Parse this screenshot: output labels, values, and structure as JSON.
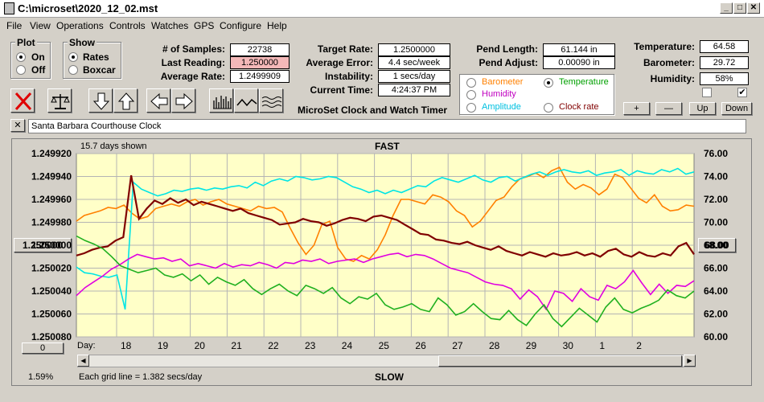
{
  "window": {
    "title": "C:\\microset\\2020_12_02.mst"
  },
  "menu": [
    "File",
    "View",
    "Operations",
    "Controls",
    "Watches",
    "GPS",
    "Configure",
    "Help"
  ],
  "plot_group": {
    "title": "Plot",
    "on": "On",
    "off": "Off",
    "selected": "On"
  },
  "show_group": {
    "title": "Show",
    "rates": "Rates",
    "boxcar": "Boxcar",
    "selected": "Rates"
  },
  "stats": {
    "samples_label": "# of Samples:",
    "samples": "22738",
    "last_label": "Last Reading:",
    "last": "1.250000",
    "avg_label": "Average Rate:",
    "avg": "1.2499909",
    "target_label": "Target Rate:",
    "target": "1.2500000",
    "error_label": "Average Error:",
    "error": "4.4 sec/week",
    "instab_label": "Instability:",
    "instab": "1 secs/day",
    "time_label": "Current Time:",
    "time": "4:24:37 PM",
    "heading": "MicroSet Clock and Watch Timer",
    "pend_len_label": "Pend Length:",
    "pend_len": "61.144 in",
    "pend_adj_label": "Pend Adjust:",
    "pend_adj": "0.00090 in",
    "temp_label": "Temperature:",
    "temp": "64.58",
    "baro_label": "Barometer:",
    "baro": "29.72",
    "hum_label": "Humidity:",
    "hum": "58%"
  },
  "overlay": {
    "options": [
      {
        "label": "Barometer",
        "color": "#ff8000",
        "selected": false
      },
      {
        "label": "Temperature",
        "color": "#00a000",
        "selected": true
      },
      {
        "label": "Humidity",
        "color": "#c000c0",
        "selected": false
      },
      {
        "label": "Clock rate",
        "color": "#800000",
        "selected": false
      },
      {
        "label": "Amplitude",
        "color": "#00c0e0",
        "selected": false
      }
    ]
  },
  "right_buttons": {
    "plus": "+",
    "minus": "—",
    "up": "Up",
    "down": "Down"
  },
  "right_checks": {
    "left": "",
    "right": "✔"
  },
  "toolbar_icons": [
    "stop-icon",
    "balance-icon",
    "down-arrow-icon",
    "up-arrow-icon",
    "left-arrow-icon",
    "right-arrow-icon",
    "bars-icon",
    "wave-icon",
    "multiwave-icon"
  ],
  "clock_name": "Santa Barbara Courthouse Clock",
  "close_x": "✕",
  "plot": {
    "days_shown": "15.7 days shown",
    "top": "FAST",
    "bottom": "SLOW",
    "grid_note": "Each grid line = 1.382 secs/day",
    "percent": "1.59%",
    "left_value_btn": "1.250000",
    "right_value_btn": "68.00",
    "zero_btn": "0",
    "day_label": "Day:"
  },
  "chart_data": {
    "type": "line",
    "x_ticks": [
      "18",
      "19",
      "20",
      "21",
      "22",
      "23",
      "24",
      "25",
      "26",
      "27",
      "28",
      "29",
      "30",
      "1",
      "2"
    ],
    "y_left_ticks": [
      "1.249920",
      "1.249940",
      "1.249960",
      "1.249980",
      "1.250000",
      "1.250020",
      "1.250040",
      "1.250060",
      "1.250080"
    ],
    "y_left_range": [
      1.24992,
      1.25008
    ],
    "y_left_inverted": true,
    "y_right_ticks": [
      "76.00",
      "74.00",
      "72.00",
      "70.00",
      "68.00",
      "66.00",
      "64.00",
      "62.00",
      "60.00"
    ],
    "y_right_range": [
      60,
      76
    ],
    "background": "#ffffc8",
    "series": [
      {
        "key": "barometer",
        "color": "#ff8000",
        "values": [
          70.1,
          70.6,
          70.8,
          71.0,
          71.3,
          71.2,
          71.5,
          70.8,
          70.3,
          70.5,
          71.2,
          71.4,
          71.6,
          71.4,
          71.8,
          72.0,
          71.5,
          71.8,
          72.0,
          71.6,
          71.4,
          71.2,
          71.0,
          71.4,
          71.2,
          71.3,
          70.9,
          69.5,
          68.2,
          67.2,
          68.0,
          69.8,
          70.1,
          67.8,
          66.8,
          66.6,
          67.1,
          66.8,
          67.6,
          68.9,
          70.6,
          72.0,
          72.0,
          71.8,
          71.6,
          72.4,
          72.2,
          71.8,
          71.0,
          70.6,
          69.6,
          70.1,
          71.0,
          71.9,
          72.2,
          73.1,
          73.8,
          74.0,
          74.3,
          73.9,
          74.5,
          74.8,
          73.5,
          72.9,
          73.3,
          73.0,
          72.4,
          72.9,
          74.2,
          73.9,
          73.0,
          72.1,
          71.7,
          72.4,
          71.4,
          71.0,
          71.1,
          71.5,
          71.4
        ]
      },
      {
        "key": "amplitude",
        "color": "#00e5e5",
        "values": [
          66.1,
          65.6,
          65.5,
          65.3,
          65.2,
          65.4,
          62.4,
          73.5,
          72.9,
          72.6,
          72.3,
          72.5,
          72.8,
          72.7,
          72.9,
          73.0,
          72.8,
          73.0,
          72.9,
          73.1,
          73.2,
          73.0,
          73.5,
          73.2,
          73.6,
          73.8,
          73.6,
          74.0,
          73.9,
          73.7,
          73.8,
          74.0,
          73.9,
          73.5,
          73.1,
          72.9,
          72.6,
          72.8,
          72.5,
          72.8,
          72.6,
          72.9,
          73.2,
          73.1,
          73.6,
          73.9,
          73.7,
          73.5,
          73.8,
          74.1,
          73.7,
          73.5,
          73.9,
          74.0,
          73.6,
          73.9,
          74.2,
          74.4,
          74.1,
          74.4,
          74.6,
          74.4,
          74.3,
          74.5,
          74.1,
          74.3,
          74.4,
          74.6,
          74.1,
          74.5,
          74.3,
          74.2,
          74.6,
          74.4,
          74.7,
          74.2,
          74.4
        ]
      },
      {
        "key": "clock_rate",
        "color": "#800000",
        "values": [
          67.1,
          67.3,
          67.6,
          67.8,
          67.9,
          68.4,
          68.7,
          74.1,
          70.3,
          71.2,
          71.9,
          71.6,
          72.1,
          71.7,
          72.0,
          71.5,
          71.8,
          71.6,
          71.4,
          71.2,
          71.0,
          71.2,
          70.8,
          70.6,
          70.4,
          70.2,
          69.8,
          69.9,
          70.0,
          70.3,
          70.1,
          70.0,
          69.7,
          69.9,
          70.2,
          70.4,
          70.3,
          70.1,
          70.5,
          70.6,
          70.4,
          70.2,
          69.8,
          69.4,
          69.0,
          68.9,
          68.5,
          68.4,
          68.2,
          68.1,
          68.3,
          68.0,
          67.8,
          67.6,
          67.9,
          67.5,
          67.3,
          67.1,
          67.4,
          67.2,
          67.0,
          67.3,
          67.1,
          67.2,
          67.4,
          67.1,
          67.3,
          67.0,
          67.5,
          67.7,
          67.2,
          67.0,
          67.4,
          67.1,
          67.0,
          67.3,
          67.1,
          67.9,
          68.2,
          67.2
        ]
      },
      {
        "key": "humidity",
        "color": "#e000e0",
        "values": [
          63.6,
          64.3,
          64.8,
          65.3,
          65.9,
          66.3,
          66.8,
          67.2,
          67.0,
          66.8,
          66.9,
          66.6,
          66.8,
          66.2,
          66.4,
          66.2,
          66.0,
          66.4,
          66.1,
          66.3,
          66.2,
          66.5,
          66.3,
          66.0,
          66.5,
          66.4,
          66.7,
          66.6,
          66.8,
          66.4,
          66.6,
          66.7,
          66.8,
          66.5,
          66.8,
          67.0,
          67.2,
          67.3,
          67.0,
          67.2,
          67.1,
          66.8,
          66.4,
          66.0,
          65.8,
          65.6,
          65.2,
          64.8,
          64.6,
          64.5,
          64.2,
          63.3,
          64.1,
          63.5,
          62.4,
          64.0,
          63.8,
          63.1,
          64.2,
          63.5,
          63.2,
          64.5,
          64.2,
          64.8,
          65.8,
          64.7,
          63.7,
          64.6,
          63.8,
          64.5,
          64.4,
          64.9
        ]
      },
      {
        "key": "temperature",
        "color": "#20b020",
        "values": [
          68.8,
          68.4,
          68.1,
          67.7,
          67.0,
          66.2,
          65.9,
          65.6,
          65.8,
          66.0,
          65.4,
          65.2,
          65.5,
          64.9,
          65.4,
          64.6,
          65.2,
          64.8,
          64.5,
          65.0,
          64.2,
          63.7,
          64.2,
          64.6,
          64.0,
          63.6,
          64.5,
          64.2,
          63.8,
          64.3,
          63.4,
          62.9,
          63.5,
          63.3,
          63.8,
          62.8,
          62.4,
          62.6,
          62.9,
          62.4,
          62.2,
          63.4,
          62.8,
          61.9,
          62.2,
          62.9,
          62.2,
          61.6,
          61.5,
          62.3,
          61.5,
          61.0,
          62.0,
          62.8,
          61.6,
          60.9,
          61.7,
          62.5,
          61.9,
          61.3,
          62.6,
          63.4,
          62.4,
          62.1,
          62.5,
          62.8,
          63.2,
          64.1,
          63.6,
          63.4,
          64.0
        ]
      }
    ]
  }
}
